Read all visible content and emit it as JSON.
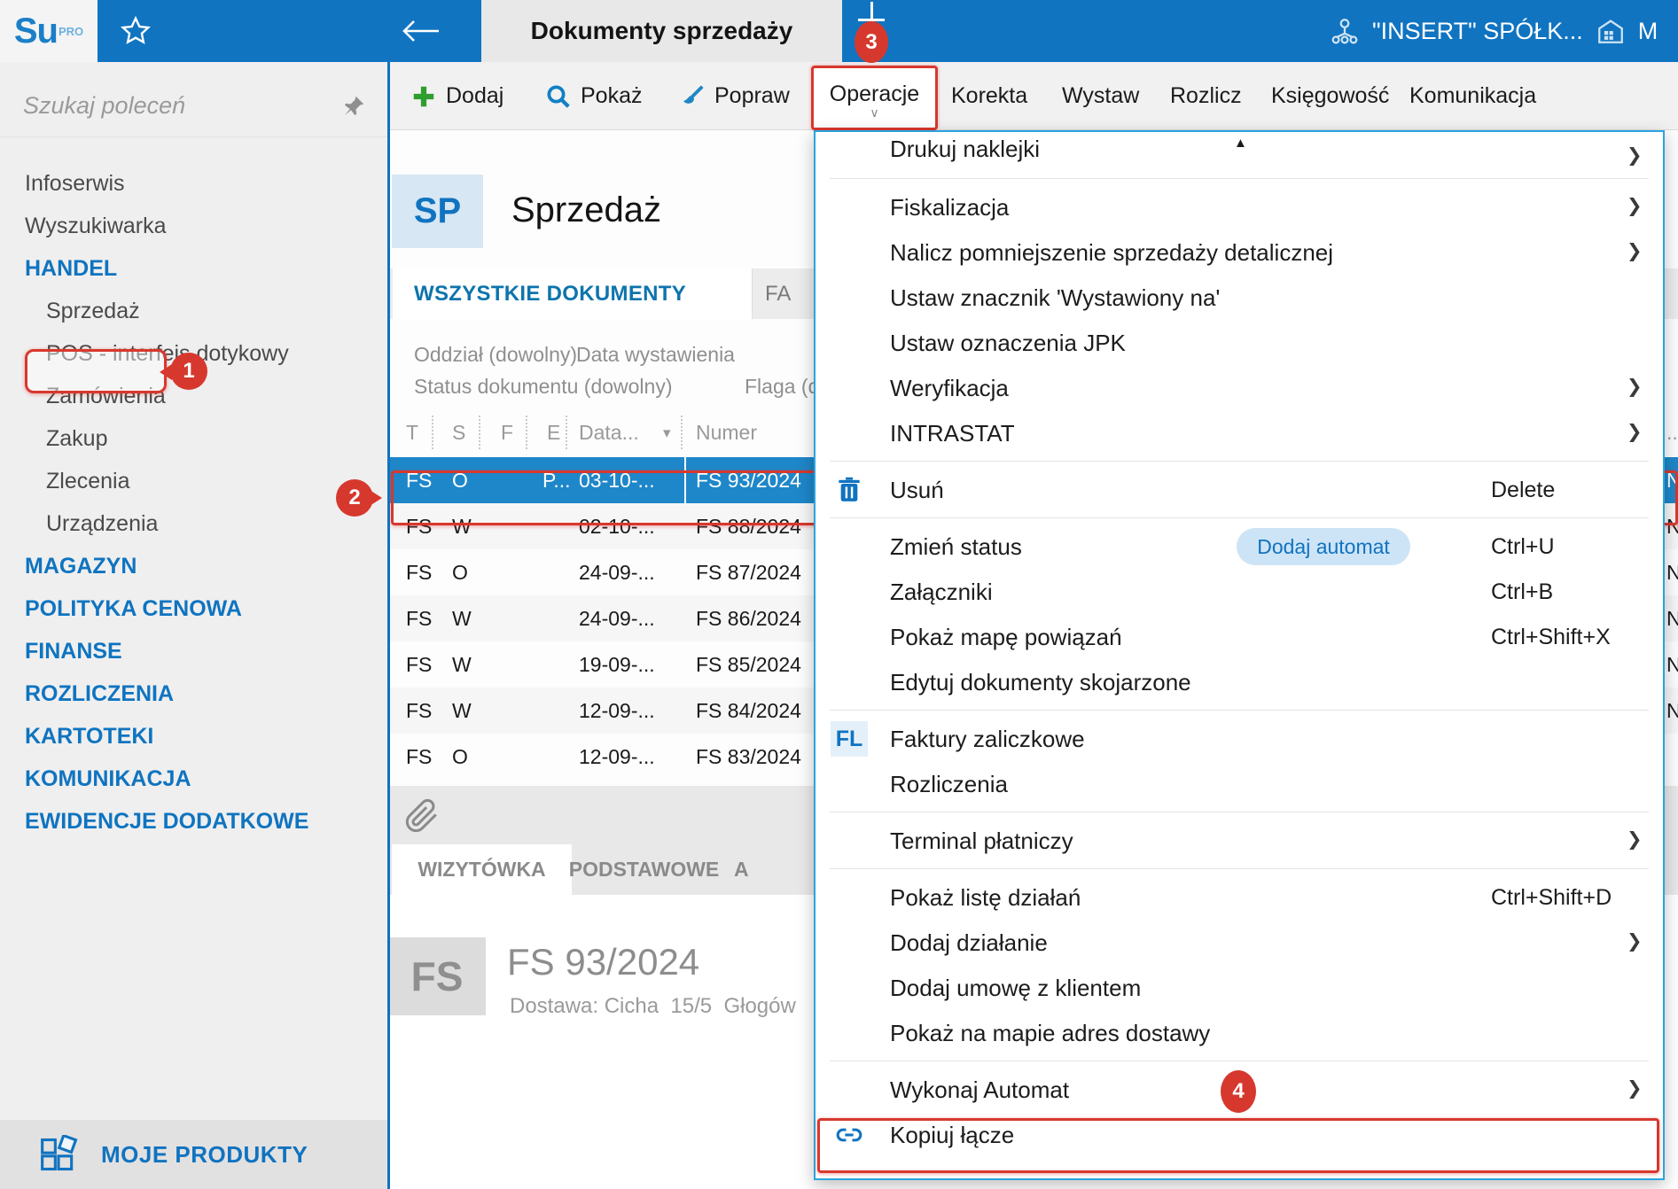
{
  "topbar": {
    "logo_main": "Su",
    "logo_sup": "PRO",
    "active_tab": "Dokumenty sprzedaży",
    "company": "\"INSERT\" SPÓŁK...",
    "branch_clipped": "M"
  },
  "sidebar": {
    "search_placeholder": "Szukaj poleceń",
    "items": [
      {
        "label": "Infoserwis",
        "type": "item"
      },
      {
        "label": "Wyszukiwarka",
        "type": "item"
      },
      {
        "label": "HANDEL",
        "type": "section"
      },
      {
        "label": "Sprzedaż",
        "type": "subitem",
        "annotated": true
      },
      {
        "label": "POS - interfejs dotykowy",
        "type": "subitem"
      },
      {
        "label": "Zamówienia",
        "type": "subitem"
      },
      {
        "label": "Zakup",
        "type": "subitem"
      },
      {
        "label": "Zlecenia",
        "type": "subitem"
      },
      {
        "label": "Urządzenia",
        "type": "subitem"
      },
      {
        "label": "MAGAZYN",
        "type": "section"
      },
      {
        "label": "POLITYKA CENOWA",
        "type": "section"
      },
      {
        "label": "FINANSE",
        "type": "section"
      },
      {
        "label": "ROZLICZENIA",
        "type": "section"
      },
      {
        "label": "KARTOTEKI",
        "type": "section"
      },
      {
        "label": "KOMUNIKACJA",
        "type": "section"
      },
      {
        "label": "EWIDENCJE DODATKOWE",
        "type": "section"
      }
    ],
    "footer": "MOJE PRODUKTY"
  },
  "toolbar": {
    "buttons": [
      {
        "id": "dodaj",
        "label": "Dodaj",
        "icon": "plus"
      },
      {
        "id": "pokaz",
        "label": "Pokaż",
        "icon": "search"
      },
      {
        "id": "popraw",
        "label": "Popraw",
        "icon": "brush"
      },
      {
        "id": "korekta",
        "label": "Korekta"
      },
      {
        "id": "wystaw",
        "label": "Wystaw"
      },
      {
        "id": "rozlicz",
        "label": "Rozlicz"
      },
      {
        "id": "ksiegowosc",
        "label": "Księgowość"
      },
      {
        "id": "komunikacja",
        "label": "Komunikacja"
      }
    ],
    "operacje_label": "Operacje"
  },
  "main": {
    "module_badge": "SP",
    "title": "Sprzedaż",
    "tabs": [
      {
        "label": "WSZYSTKIE DOKUMENTY",
        "active": true
      },
      {
        "label": "FA",
        "active": false
      }
    ],
    "filters": {
      "oddzial": "Oddział (dowolny)",
      "data_wystawienia": "Data wystawienia",
      "status": "Status dokumentu (dowolny)",
      "flaga": "Flaga (d"
    },
    "table": {
      "headers": [
        "T",
        "S",
        "F",
        "E",
        "Data...",
        "Numer"
      ],
      "sort_column": "Data...",
      "rows": [
        {
          "t": "FS",
          "s": "O",
          "e": "P...",
          "date": "03-10-...",
          "number": "FS 93/2024",
          "frag": "N",
          "selected": true,
          "annotated": true
        },
        {
          "t": "FS",
          "s": "W",
          "e": "",
          "date": "02-10-...",
          "number": "FS 88/2024",
          "frag": "N",
          "selected": false
        },
        {
          "t": "FS",
          "s": "O",
          "e": "",
          "date": "24-09-...",
          "number": "FS 87/2024",
          "frag": "N",
          "selected": false
        },
        {
          "t": "FS",
          "s": "W",
          "e": "",
          "date": "24-09-...",
          "number": "FS 86/2024",
          "frag": "N",
          "selected": false
        },
        {
          "t": "FS",
          "s": "W",
          "e": "",
          "date": "19-09-...",
          "number": "FS 85/2024",
          "frag": "N",
          "selected": false
        },
        {
          "t": "FS",
          "s": "W",
          "e": "",
          "date": "12-09-...",
          "number": "FS 84/2024",
          "frag": "N",
          "selected": false
        },
        {
          "t": "FS",
          "s": "O",
          "e": "",
          "date": "12-09-...",
          "number": "FS 83/2024",
          "frag": "",
          "selected": false,
          "clipped": true
        }
      ]
    }
  },
  "detail": {
    "tabs": [
      "WIZYTÓWKA",
      "PODSTAWOWE",
      "A"
    ],
    "doc_badge": "FS",
    "doc_title": "FS 93/2024",
    "doc_subtitle": "Dostawa: Cicha  15/5  Głogów"
  },
  "menu": {
    "items": [
      {
        "type": "item",
        "label": "Drukuj naklejki",
        "submenu": true,
        "clipped": true
      },
      {
        "type": "sep"
      },
      {
        "type": "item",
        "label": "Fiskalizacja",
        "submenu": true
      },
      {
        "type": "item",
        "label": "Nalicz pomniejszenie sprzedaży detalicznej",
        "submenu": true
      },
      {
        "type": "item",
        "label": "Ustaw znacznik 'Wystawiony na'"
      },
      {
        "type": "item",
        "label": "Ustaw oznaczenia JPK"
      },
      {
        "type": "item",
        "label": "Weryfikacja",
        "submenu": true
      },
      {
        "type": "item",
        "label": "INTRASTAT",
        "submenu": true
      },
      {
        "type": "sep"
      },
      {
        "type": "item",
        "label": "Usuń",
        "icon": "trash",
        "shortcut": "Delete"
      },
      {
        "type": "sep"
      },
      {
        "type": "item",
        "label": "Zmień status",
        "pill": "Dodaj automat",
        "shortcut": "Ctrl+U"
      },
      {
        "type": "item",
        "label": "Załączniki",
        "shortcut": "Ctrl+B"
      },
      {
        "type": "item",
        "label": "Pokaż mapę powiązań",
        "shortcut": "Ctrl+Shift+X"
      },
      {
        "type": "item",
        "label": "Edytuj dokumenty skojarzone"
      },
      {
        "type": "sep"
      },
      {
        "type": "item",
        "label": "Faktury zaliczkowe",
        "icon": "fl"
      },
      {
        "type": "item",
        "label": "Rozliczenia"
      },
      {
        "type": "sep"
      },
      {
        "type": "item",
        "label": "Terminal płatniczy",
        "submenu": true
      },
      {
        "type": "sep"
      },
      {
        "type": "item",
        "label": "Pokaż listę działań",
        "shortcut": "Ctrl+Shift+D"
      },
      {
        "type": "item",
        "label": "Dodaj działanie",
        "submenu": true
      },
      {
        "type": "item",
        "label": "Dodaj umowę z klientem"
      },
      {
        "type": "item",
        "label": "Pokaż na mapie adres dostawy"
      },
      {
        "type": "sep"
      },
      {
        "type": "item",
        "label": "Wykonaj Automat",
        "submenu": true,
        "annotated": "4"
      },
      {
        "type": "item",
        "label": "Kopiuj łącze",
        "icon": "link",
        "highlighted": true
      }
    ]
  },
  "annotations": {
    "badge1": "1",
    "badge2": "2",
    "badge3": "3",
    "badge4": "4"
  },
  "colors": {
    "topbar_blue": "#1074c1",
    "accent_blue": "#1073c0",
    "selected_row": "#1e87c9",
    "menu_border": "#2ba3e0",
    "annotation_red": "#d6382e",
    "pill_bg": "#cde4f6"
  }
}
